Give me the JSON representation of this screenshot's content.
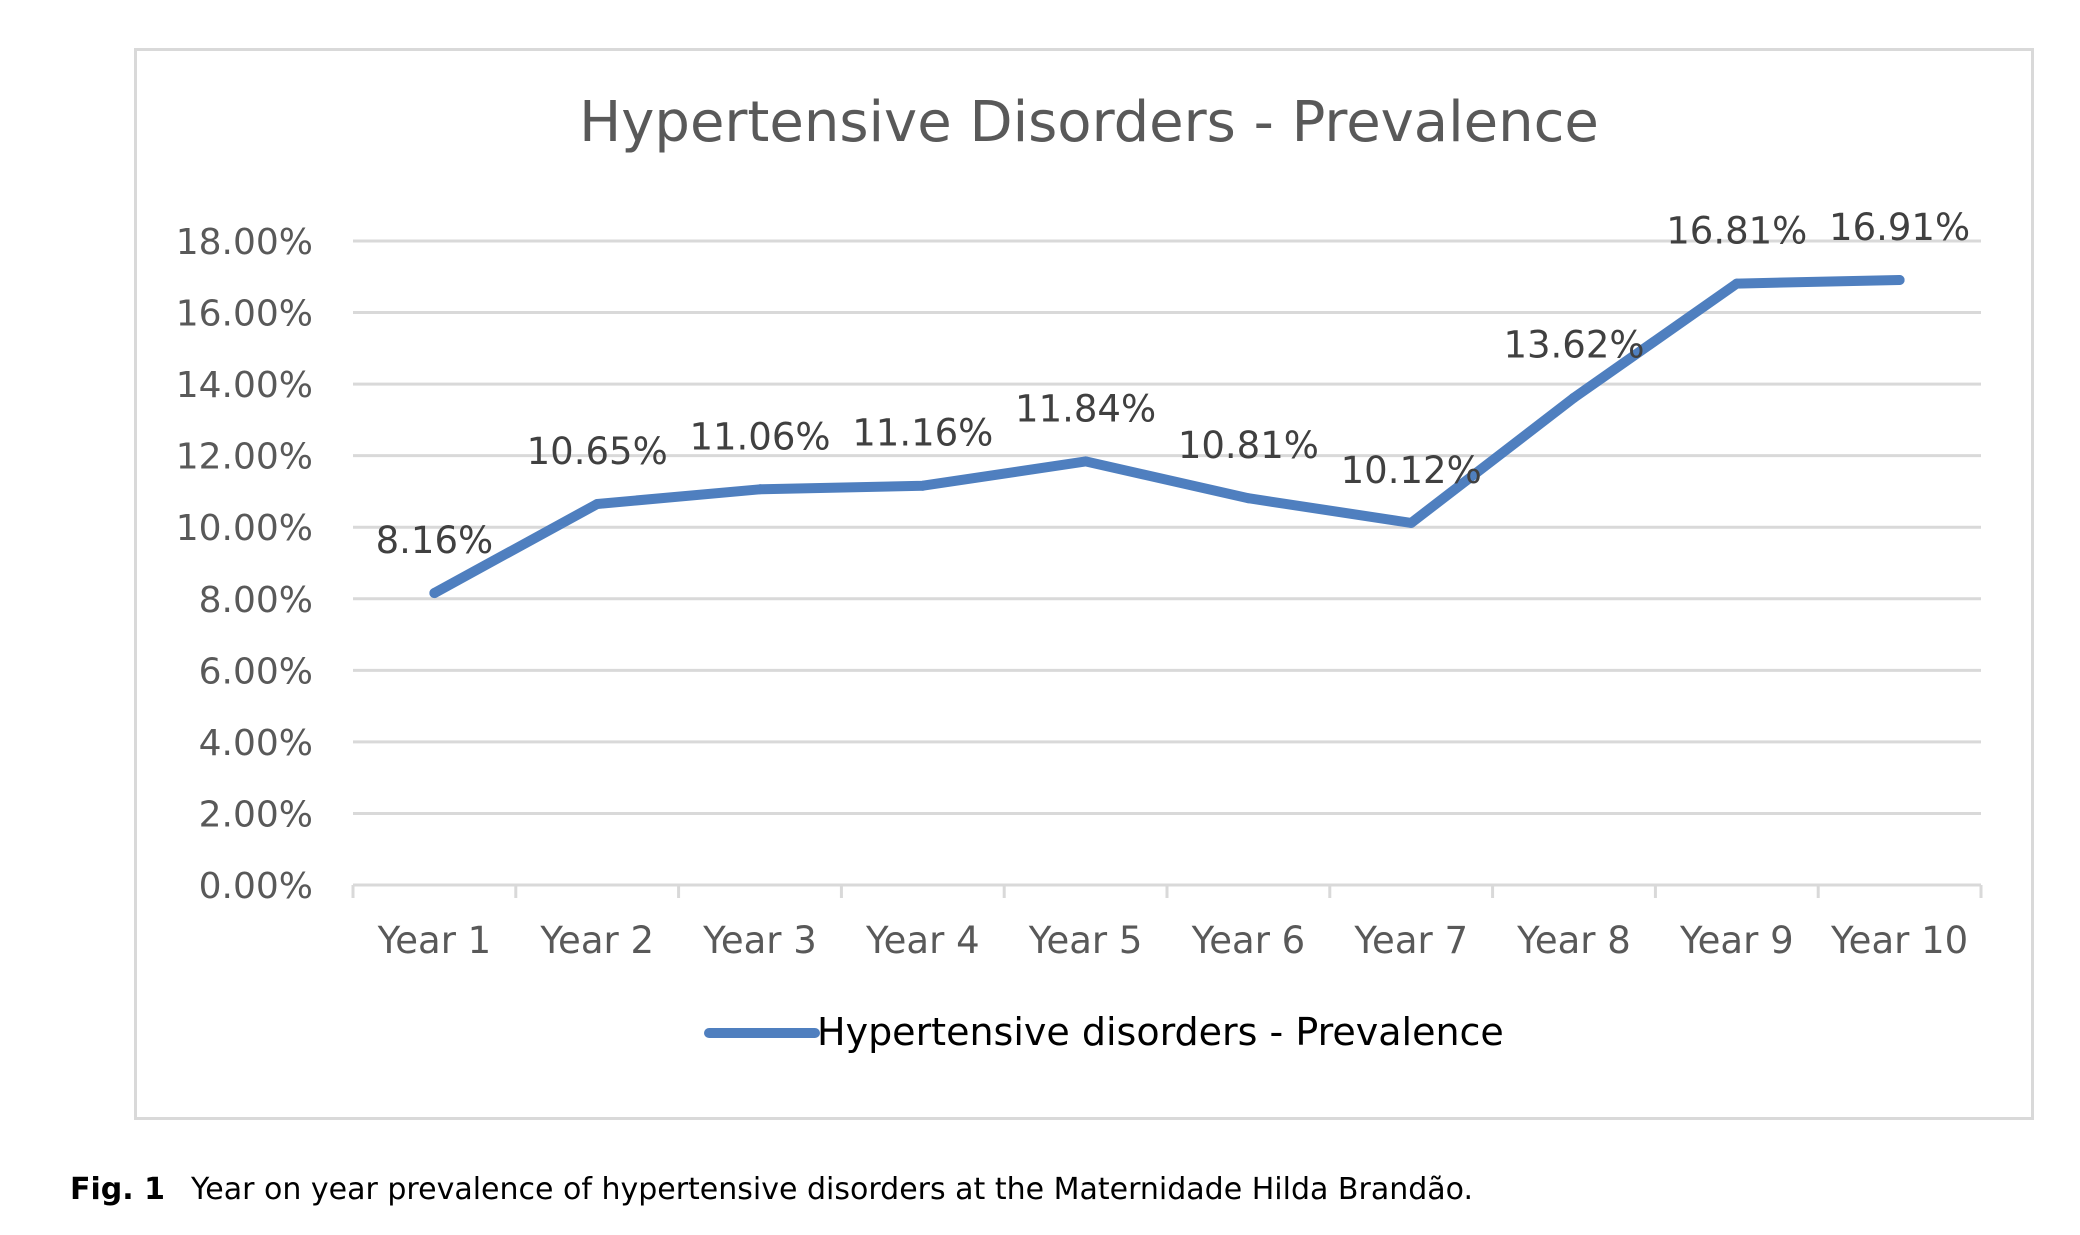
{
  "chart_data": {
    "type": "line",
    "title": "Hypertensive Disorders - Prevalence",
    "categories": [
      "Year 1",
      "Year 2",
      "Year 3",
      "Year 4",
      "Year 5",
      "Year 6",
      "Year 7",
      "Year 8",
      "Year 9",
      "Year 10"
    ],
    "series": [
      {
        "name": "Hypertensive disorders - Prevalence",
        "values": [
          8.16,
          10.65,
          11.06,
          11.16,
          11.84,
          10.81,
          10.12,
          13.62,
          16.81,
          16.91
        ],
        "labels": [
          "8.16%",
          "10.65%",
          "11.06%",
          "11.16%",
          "11.84%",
          "10.81%",
          "10.12%",
          "13.62%",
          "16.81%",
          "16.91%"
        ],
        "color": "#4f7fbf"
      }
    ],
    "ylim": [
      0,
      18
    ],
    "yticks": [
      "0.00%",
      "2.00%",
      "4.00%",
      "6.00%",
      "8.00%",
      "10.00%",
      "12.00%",
      "14.00%",
      "16.00%",
      "18.00%"
    ],
    "grid": true,
    "legend": "bottom"
  },
  "caption": {
    "label": "Fig. 1",
    "text": "Year on year prevalence of hypertensive disorders at the Maternidade Hilda Brandão."
  }
}
